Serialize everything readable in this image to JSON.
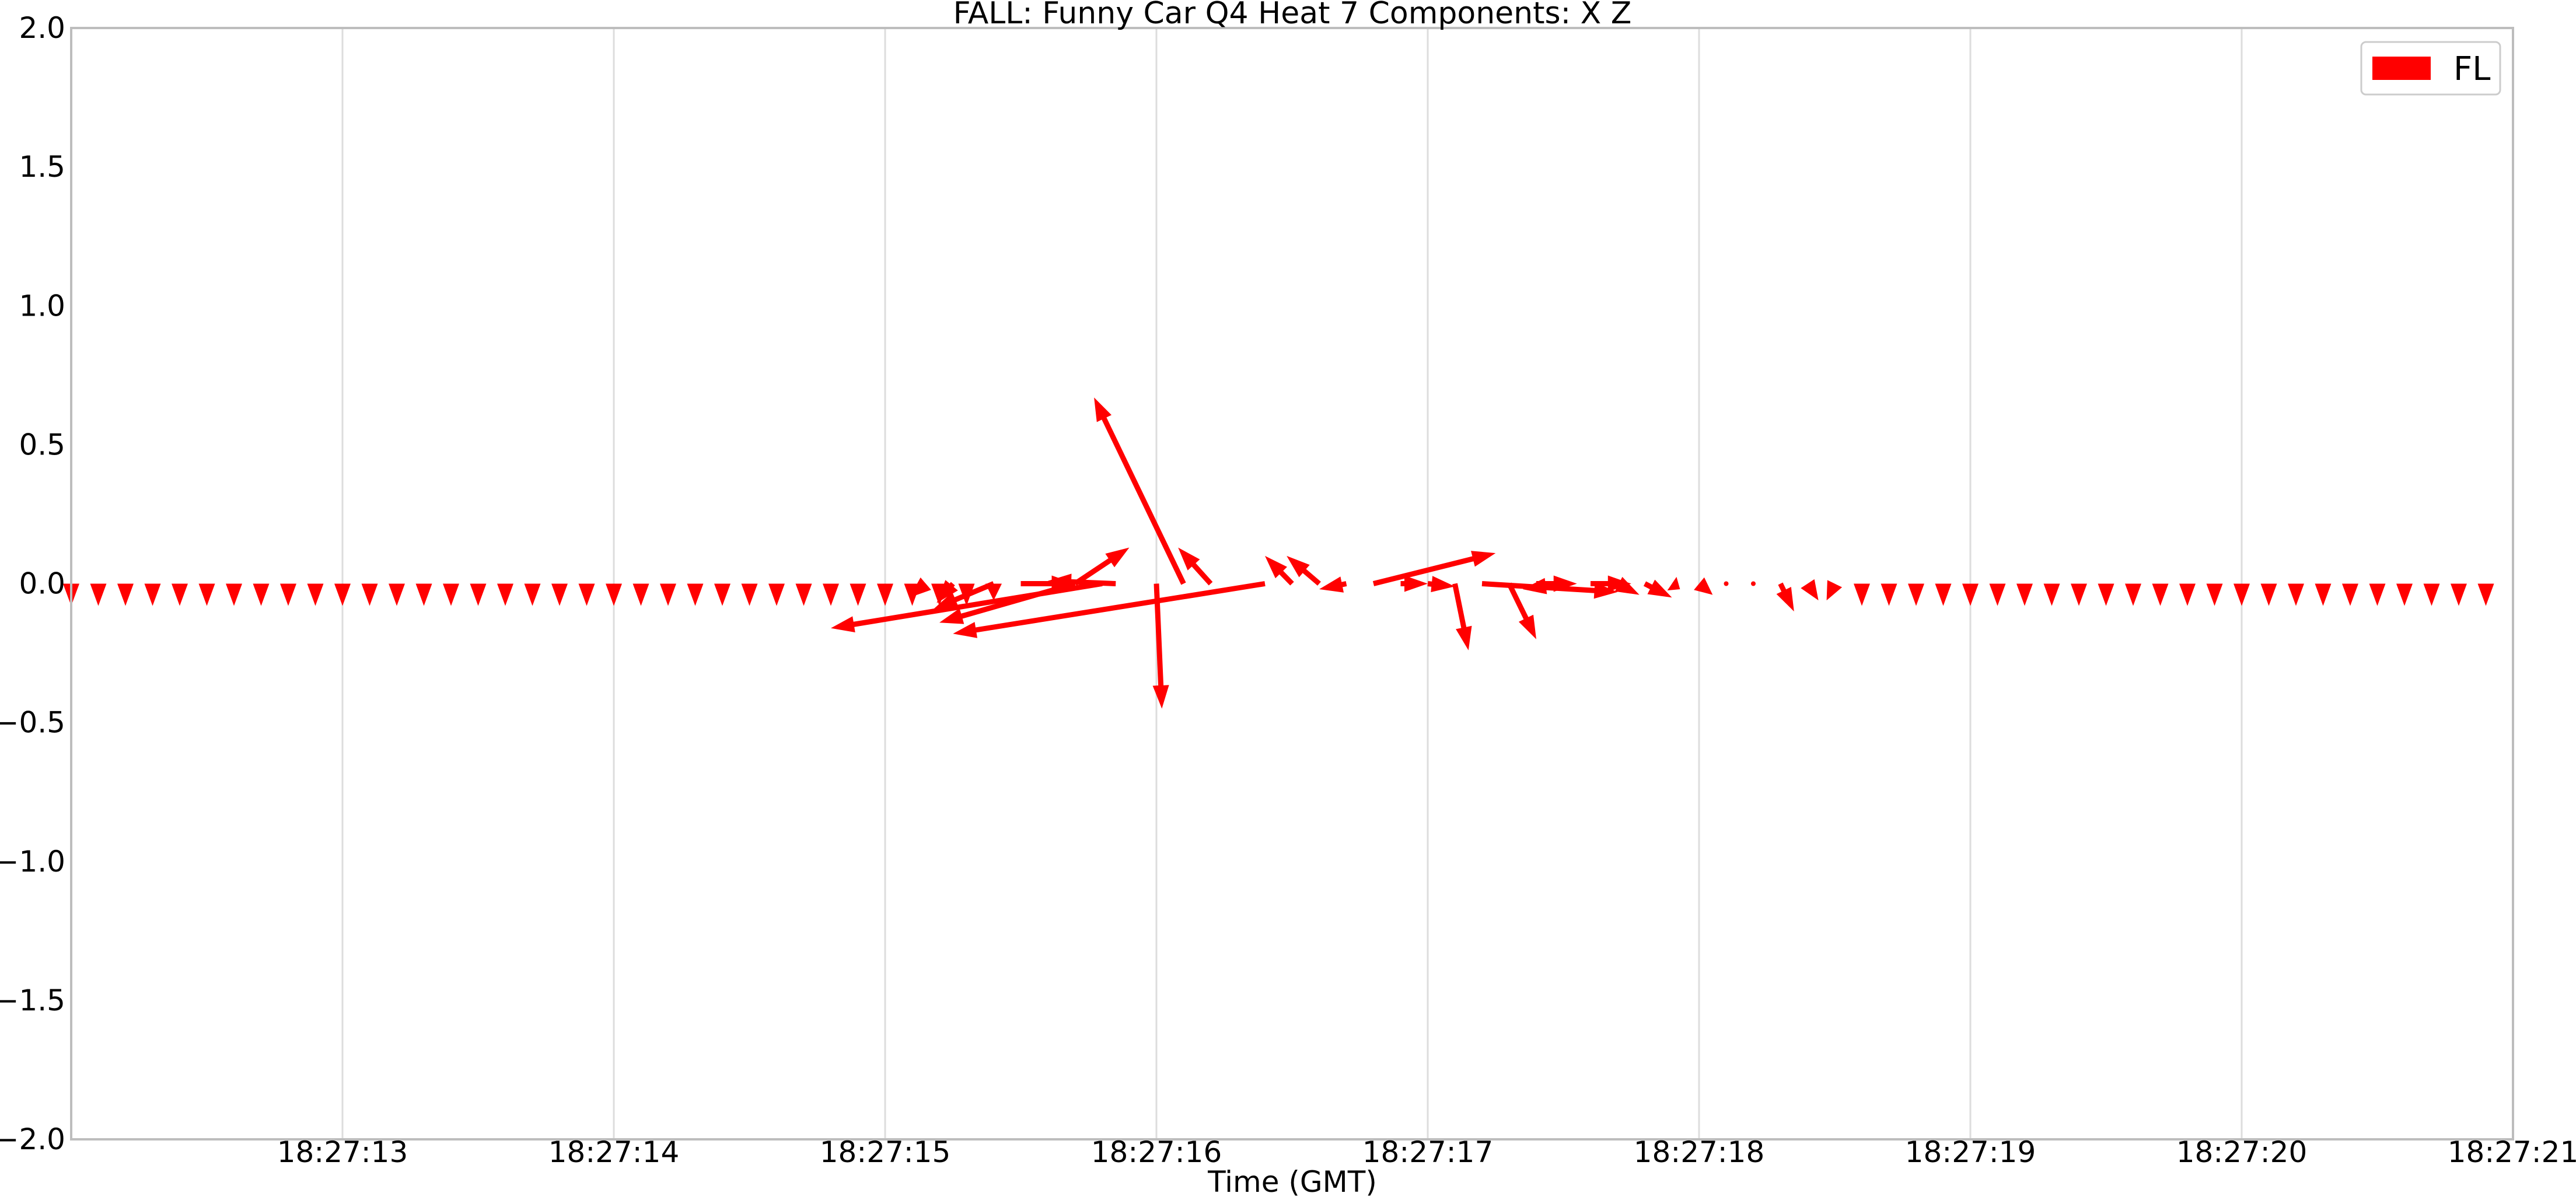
{
  "chart_data": {
    "type": "quiver",
    "title": "FALL: Funny Car Q4 Heat 7 Components: X Z",
    "xlabel": "Time (GMT)",
    "ylabel": "",
    "xlim": [
      "18:27:12.000",
      "18:27:21.000"
    ],
    "ylim": [
      -2.0,
      2.0
    ],
    "x_tick_labels": [
      "18:27:13",
      "18:27:14",
      "18:27:15",
      "18:27:16",
      "18:27:17",
      "18:27:18",
      "18:27:19",
      "18:27:20",
      "18:27:21"
    ],
    "y_tick_labels": [
      "2.0",
      "1.5",
      "1.0",
      "0.5",
      "0.0",
      "−0.5",
      "−1.0",
      "−1.5",
      "−2.0"
    ],
    "grid": "vertical",
    "legend": {
      "position": "top-right",
      "entries": [
        "FL"
      ]
    },
    "series": [
      {
        "name": "FL",
        "color": "#ff0000",
        "arrows": [
          {
            "t": "18:27:12.000",
            "dt": 0.0,
            "dz": -0.08
          },
          {
            "t": "18:27:12.100",
            "dt": 0.0,
            "dz": -0.08
          },
          {
            "t": "18:27:12.200",
            "dt": 0.0,
            "dz": -0.08
          },
          {
            "t": "18:27:12.300",
            "dt": 0.0,
            "dz": -0.08
          },
          {
            "t": "18:27:12.400",
            "dt": 0.0,
            "dz": -0.08
          },
          {
            "t": "18:27:12.500",
            "dt": 0.0,
            "dz": -0.08
          },
          {
            "t": "18:27:12.600",
            "dt": 0.0,
            "dz": -0.08
          },
          {
            "t": "18:27:12.700",
            "dt": 0.0,
            "dz": -0.08
          },
          {
            "t": "18:27:12.800",
            "dt": 0.0,
            "dz": -0.08
          },
          {
            "t": "18:27:12.900",
            "dt": 0.0,
            "dz": -0.08
          },
          {
            "t": "18:27:13.000",
            "dt": 0.0,
            "dz": -0.08
          },
          {
            "t": "18:27:13.100",
            "dt": 0.0,
            "dz": -0.08
          },
          {
            "t": "18:27:13.200",
            "dt": 0.0,
            "dz": -0.08
          },
          {
            "t": "18:27:13.300",
            "dt": 0.0,
            "dz": -0.08
          },
          {
            "t": "18:27:13.400",
            "dt": 0.0,
            "dz": -0.08
          },
          {
            "t": "18:27:13.500",
            "dt": 0.0,
            "dz": -0.08
          },
          {
            "t": "18:27:13.600",
            "dt": 0.0,
            "dz": -0.08
          },
          {
            "t": "18:27:13.700",
            "dt": 0.0,
            "dz": -0.08
          },
          {
            "t": "18:27:13.800",
            "dt": 0.0,
            "dz": -0.08
          },
          {
            "t": "18:27:13.900",
            "dt": 0.0,
            "dz": -0.08
          },
          {
            "t": "18:27:14.000",
            "dt": 0.0,
            "dz": -0.08
          },
          {
            "t": "18:27:14.100",
            "dt": 0.0,
            "dz": -0.08
          },
          {
            "t": "18:27:14.200",
            "dt": 0.0,
            "dz": -0.08
          },
          {
            "t": "18:27:14.300",
            "dt": 0.0,
            "dz": -0.08
          },
          {
            "t": "18:27:14.400",
            "dt": 0.0,
            "dz": -0.08
          },
          {
            "t": "18:27:14.500",
            "dt": 0.0,
            "dz": -0.08
          },
          {
            "t": "18:27:14.600",
            "dt": 0.0,
            "dz": -0.08
          },
          {
            "t": "18:27:14.700",
            "dt": 0.0,
            "dz": -0.08
          },
          {
            "t": "18:27:14.800",
            "dt": 0.0,
            "dz": -0.08
          },
          {
            "t": "18:27:14.900",
            "dt": 0.0,
            "dz": -0.08
          },
          {
            "t": "18:27:15.000",
            "dt": 0.0,
            "dz": -0.08
          },
          {
            "t": "18:27:15.100",
            "dt": 0.0,
            "dz": -0.08
          },
          {
            "t": "18:27:15.200",
            "dt": 0.0,
            "dz": -0.08
          },
          {
            "t": "18:27:15.300",
            "dt": 0.0,
            "dz": -0.08
          },
          {
            "t": "18:27:15.400",
            "dt": 0.0,
            "dz": -0.06
          },
          {
            "t": "18:27:15.150",
            "dt": -0.06,
            "dz": -0.05
          },
          {
            "t": "18:27:15.250",
            "dt": -0.06,
            "dz": -0.07
          },
          {
            "t": "18:27:15.400",
            "dt": -0.22,
            "dz": -0.09
          },
          {
            "t": "18:27:15.500",
            "dt": 0.2,
            "dz": 0.0
          },
          {
            "t": "18:27:15.800",
            "dt": -1.0,
            "dz": -0.16
          },
          {
            "t": "18:27:15.700",
            "dt": -0.5,
            "dz": -0.14
          },
          {
            "t": "18:27:15.700",
            "dt": 0.2,
            "dz": 0.13
          },
          {
            "t": "18:27:15.850",
            "dt": -0.25,
            "dz": 0.01
          },
          {
            "t": "18:27:16.000",
            "dt": 0.02,
            "dz": -0.45
          },
          {
            "t": "18:27:16.100",
            "dt": -0.33,
            "dz": 0.67
          },
          {
            "t": "18:27:16.200",
            "dt": -0.12,
            "dz": 0.13
          },
          {
            "t": "18:27:16.400",
            "dt": -1.15,
            "dz": -0.18
          },
          {
            "t": "18:27:16.500",
            "dt": -0.1,
            "dz": 0.1
          },
          {
            "t": "18:27:16.600",
            "dt": -0.12,
            "dz": 0.1
          },
          {
            "t": "18:27:16.700",
            "dt": -0.1,
            "dz": -0.02
          },
          {
            "t": "18:27:16.800",
            "dt": 0.45,
            "dz": 0.11
          },
          {
            "t": "18:27:16.900",
            "dt": 0.1,
            "dz": 0.0
          },
          {
            "t": "18:27:17.000",
            "dt": 0.1,
            "dz": -0.01
          },
          {
            "t": "18:27:17.100",
            "dt": 0.05,
            "dz": -0.24
          },
          {
            "t": "18:27:17.200",
            "dt": 0.5,
            "dz": -0.03
          },
          {
            "t": "18:27:17.300",
            "dt": 0.1,
            "dz": -0.2
          },
          {
            "t": "18:27:17.400",
            "dt": 0.15,
            "dz": 0.0
          },
          {
            "t": "18:27:17.500",
            "dt": -0.15,
            "dz": -0.02
          },
          {
            "t": "18:27:17.600",
            "dt": 0.15,
            "dz": 0.0
          },
          {
            "t": "18:27:17.700",
            "dt": 0.08,
            "dz": -0.04
          },
          {
            "t": "18:27:17.800",
            "dt": 0.1,
            "dz": -0.05
          },
          {
            "t": "18:27:17.900",
            "dt": 0.03,
            "dz": -0.02
          },
          {
            "t": "18:27:18.000",
            "dt": 0.05,
            "dz": -0.04
          },
          {
            "t": "18:27:18.100",
            "dt": 0.0,
            "dz": 0.0
          },
          {
            "t": "18:27:18.200",
            "dt": 0.0,
            "dz": 0.0
          },
          {
            "t": "18:27:18.300",
            "dt": 0.05,
            "dz": -0.1
          },
          {
            "t": "18:27:18.400",
            "dt": 0.04,
            "dz": -0.06
          },
          {
            "t": "18:27:18.500",
            "dt": -0.03,
            "dz": -0.06
          },
          {
            "t": "18:27:18.600",
            "dt": 0.0,
            "dz": -0.08
          },
          {
            "t": "18:27:18.700",
            "dt": 0.0,
            "dz": -0.08
          },
          {
            "t": "18:27:18.800",
            "dt": 0.0,
            "dz": -0.08
          },
          {
            "t": "18:27:18.900",
            "dt": 0.0,
            "dz": -0.08
          },
          {
            "t": "18:27:19.000",
            "dt": 0.0,
            "dz": -0.08
          },
          {
            "t": "18:27:19.100",
            "dt": 0.0,
            "dz": -0.08
          },
          {
            "t": "18:27:19.200",
            "dt": 0.0,
            "dz": -0.08
          },
          {
            "t": "18:27:19.300",
            "dt": 0.0,
            "dz": -0.08
          },
          {
            "t": "18:27:19.400",
            "dt": 0.0,
            "dz": -0.08
          },
          {
            "t": "18:27:19.500",
            "dt": 0.0,
            "dz": -0.08
          },
          {
            "t": "18:27:19.600",
            "dt": 0.0,
            "dz": -0.08
          },
          {
            "t": "18:27:19.700",
            "dt": 0.0,
            "dz": -0.08
          },
          {
            "t": "18:27:19.800",
            "dt": 0.0,
            "dz": -0.08
          },
          {
            "t": "18:27:19.900",
            "dt": 0.0,
            "dz": -0.08
          },
          {
            "t": "18:27:20.000",
            "dt": 0.0,
            "dz": -0.08
          },
          {
            "t": "18:27:20.100",
            "dt": 0.0,
            "dz": -0.08
          },
          {
            "t": "18:27:20.200",
            "dt": 0.0,
            "dz": -0.08
          },
          {
            "t": "18:27:20.300",
            "dt": 0.0,
            "dz": -0.08
          },
          {
            "t": "18:27:20.400",
            "dt": 0.0,
            "dz": -0.08
          },
          {
            "t": "18:27:20.500",
            "dt": 0.0,
            "dz": -0.08
          },
          {
            "t": "18:27:20.600",
            "dt": 0.0,
            "dz": -0.08
          },
          {
            "t": "18:27:20.700",
            "dt": 0.0,
            "dz": -0.08
          },
          {
            "t": "18:27:20.800",
            "dt": 0.0,
            "dz": -0.08
          },
          {
            "t": "18:27:20.900",
            "dt": 0.0,
            "dz": -0.08
          }
        ]
      }
    ]
  }
}
